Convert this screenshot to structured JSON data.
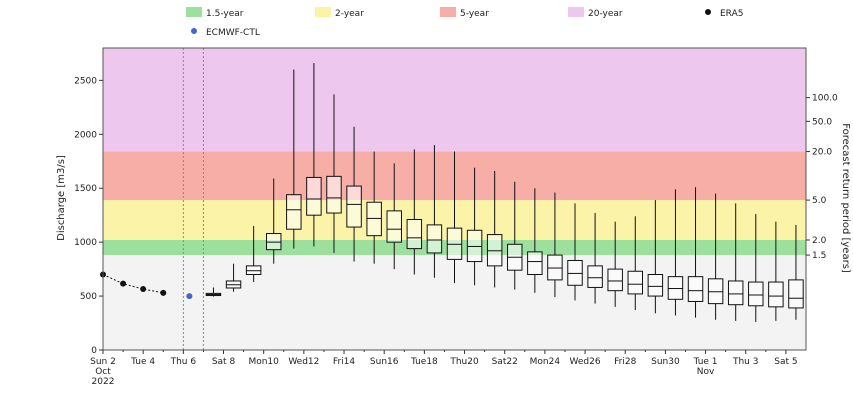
{
  "chart_data": {
    "type": "box",
    "ylabel": "Discharge [m3/s]",
    "y2label": "Forecast return period [years]",
    "ylim": [
      0,
      2800
    ],
    "y_ticks": [
      0,
      500,
      1000,
      1500,
      2000,
      2500
    ],
    "x_tick_labels": [
      {
        "day": 0,
        "lines": [
          "Sun 2",
          "Oct",
          "2022"
        ]
      },
      {
        "day": 2,
        "lines": [
          "Tue 4"
        ]
      },
      {
        "day": 4,
        "lines": [
          "Thu 6"
        ]
      },
      {
        "day": 6,
        "lines": [
          "Sat 8"
        ]
      },
      {
        "day": 8,
        "lines": [
          "Mon10"
        ]
      },
      {
        "day": 10,
        "lines": [
          "Wed12"
        ]
      },
      {
        "day": 12,
        "lines": [
          "Fri14"
        ]
      },
      {
        "day": 14,
        "lines": [
          "Sun16"
        ]
      },
      {
        "day": 16,
        "lines": [
          "Tue18"
        ]
      },
      {
        "day": 18,
        "lines": [
          "Thu20"
        ]
      },
      {
        "day": 20,
        "lines": [
          "Sat22"
        ]
      },
      {
        "day": 22,
        "lines": [
          "Mon24"
        ]
      },
      {
        "day": 24,
        "lines": [
          "Wed26"
        ]
      },
      {
        "day": 26,
        "lines": [
          "Fri28"
        ]
      },
      {
        "day": 28,
        "lines": [
          "Sun30"
        ]
      },
      {
        "day": 30,
        "lines": [
          "Tue 1",
          "Nov"
        ]
      },
      {
        "day": 32,
        "lines": [
          "Thu 3"
        ]
      },
      {
        "day": 34,
        "lines": [
          "Sat 5"
        ]
      }
    ],
    "return_period_bands": [
      {
        "name": "1.5-year",
        "from": 880,
        "to": 1020,
        "color": "#9de09d"
      },
      {
        "name": "2-year",
        "from": 1020,
        "to": 1390,
        "color": "#fbf3a8"
      },
      {
        "name": "5-year",
        "from": 1390,
        "to": 1840,
        "color": "#f6aea6"
      },
      {
        "name": "20-year",
        "from": 1840,
        "to": 2800,
        "color": "#eec7ee"
      }
    ],
    "below_band_color": "#f3f3f3",
    "return_period_ticks": [
      {
        "label": "1.5",
        "value": 880
      },
      {
        "label": "2.0",
        "value": 1020
      },
      {
        "label": "5.0",
        "value": 1390
      },
      {
        "label": "20.0",
        "value": 1840
      },
      {
        "label": "50.0",
        "value": 2120
      },
      {
        "label": "100.0",
        "value": 2340
      }
    ],
    "legend": [
      {
        "label": "1.5-year",
        "kind": "patch",
        "color": "#9de09d"
      },
      {
        "label": "2-year",
        "kind": "patch",
        "color": "#fbf3a8"
      },
      {
        "label": "5-year",
        "kind": "patch",
        "color": "#f6aea6"
      },
      {
        "label": "20-year",
        "kind": "patch",
        "color": "#eec7ee"
      },
      {
        "label": "ERA5",
        "kind": "dot",
        "color": "#111111"
      },
      {
        "label": "ECMWF-CTL",
        "kind": "dot",
        "color": "#4466cc"
      }
    ],
    "era5": [
      {
        "day": 0,
        "value": 700
      },
      {
        "day": 1,
        "value": 615
      },
      {
        "day": 2,
        "value": 565
      },
      {
        "day": 3,
        "value": 530
      }
    ],
    "ecmwf_ctl": [
      {
        "day": 4.3,
        "value": 500
      }
    ],
    "forecast_window_lines": [
      4.0,
      5.0
    ],
    "boxes": [
      {
        "day": 5.5,
        "min": 495,
        "q1": 505,
        "median": 515,
        "q3": 525,
        "max": 580
      },
      {
        "day": 6.5,
        "min": 540,
        "q1": 575,
        "median": 605,
        "q3": 640,
        "max": 800
      },
      {
        "day": 7.5,
        "min": 630,
        "q1": 700,
        "median": 735,
        "q3": 780,
        "max": 1150
      },
      {
        "day": 8.5,
        "min": 800,
        "q1": 930,
        "median": 1000,
        "q3": 1080,
        "max": 1590
      },
      {
        "day": 9.5,
        "min": 940,
        "q1": 1120,
        "median": 1300,
        "q3": 1440,
        "max": 2600
      },
      {
        "day": 10.5,
        "min": 960,
        "q1": 1250,
        "median": 1400,
        "q3": 1600,
        "max": 2660
      },
      {
        "day": 11.5,
        "min": 900,
        "q1": 1270,
        "median": 1410,
        "q3": 1610,
        "max": 2370
      },
      {
        "day": 12.5,
        "min": 820,
        "q1": 1140,
        "median": 1350,
        "q3": 1520,
        "max": 2070
      },
      {
        "day": 13.5,
        "min": 800,
        "q1": 1060,
        "median": 1220,
        "q3": 1370,
        "max": 1840
      },
      {
        "day": 14.5,
        "min": 750,
        "q1": 1000,
        "median": 1120,
        "q3": 1290,
        "max": 1730
      },
      {
        "day": 15.5,
        "min": 700,
        "q1": 940,
        "median": 1040,
        "q3": 1210,
        "max": 1860
      },
      {
        "day": 16.5,
        "min": 670,
        "q1": 900,
        "median": 1020,
        "q3": 1160,
        "max": 1900
      },
      {
        "day": 17.5,
        "min": 620,
        "q1": 840,
        "median": 980,
        "q3": 1130,
        "max": 1840
      },
      {
        "day": 18.5,
        "min": 600,
        "q1": 820,
        "median": 960,
        "q3": 1110,
        "max": 1690
      },
      {
        "day": 19.5,
        "min": 580,
        "q1": 780,
        "median": 920,
        "q3": 1070,
        "max": 1660
      },
      {
        "day": 20.5,
        "min": 560,
        "q1": 740,
        "median": 860,
        "q3": 980,
        "max": 1560
      },
      {
        "day": 21.5,
        "min": 530,
        "q1": 700,
        "median": 820,
        "q3": 910,
        "max": 1500
      },
      {
        "day": 22.5,
        "min": 490,
        "q1": 650,
        "median": 760,
        "q3": 880,
        "max": 1460
      },
      {
        "day": 23.5,
        "min": 460,
        "q1": 600,
        "median": 710,
        "q3": 830,
        "max": 1360
      },
      {
        "day": 24.5,
        "min": 430,
        "q1": 580,
        "median": 670,
        "q3": 780,
        "max": 1270
      },
      {
        "day": 25.5,
        "min": 400,
        "q1": 550,
        "median": 640,
        "q3": 750,
        "max": 1190
      },
      {
        "day": 26.5,
        "min": 370,
        "q1": 520,
        "median": 610,
        "q3": 730,
        "max": 1240
      },
      {
        "day": 27.5,
        "min": 340,
        "q1": 500,
        "median": 590,
        "q3": 700,
        "max": 1390
      },
      {
        "day": 28.5,
        "min": 320,
        "q1": 470,
        "median": 570,
        "q3": 680,
        "max": 1490
      },
      {
        "day": 29.5,
        "min": 300,
        "q1": 450,
        "median": 550,
        "q3": 680,
        "max": 1510
      },
      {
        "day": 30.5,
        "min": 280,
        "q1": 430,
        "median": 540,
        "q3": 660,
        "max": 1450
      },
      {
        "day": 31.5,
        "min": 270,
        "q1": 420,
        "median": 520,
        "q3": 640,
        "max": 1360
      },
      {
        "day": 32.5,
        "min": 260,
        "q1": 410,
        "median": 510,
        "q3": 630,
        "max": 1260
      },
      {
        "day": 33.5,
        "min": 270,
        "q1": 400,
        "median": 500,
        "q3": 630,
        "max": 1190
      },
      {
        "day": 34.5,
        "min": 280,
        "q1": 390,
        "median": 480,
        "q3": 650,
        "max": 1160
      }
    ]
  }
}
